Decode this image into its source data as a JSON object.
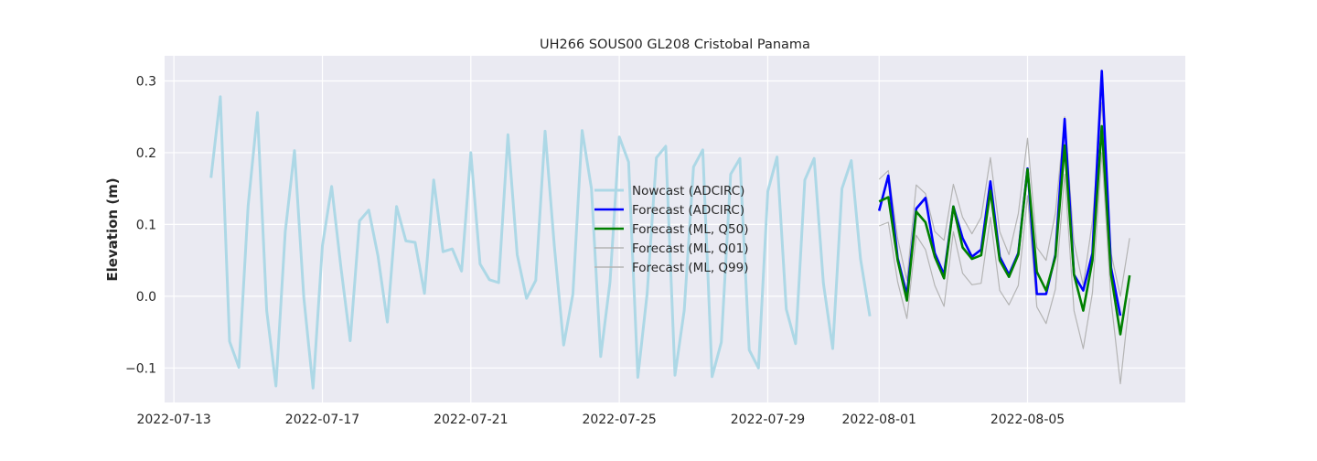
{
  "chart_data": {
    "type": "line",
    "title": "UH266 SOUS00 GL208 Cristobal Panama",
    "xlabel": "",
    "ylabel": "Elevation (m)",
    "xlim": [
      "2022-07-12T18:00",
      "2022-08-09T06:00"
    ],
    "ylim": [
      -0.148,
      0.335
    ],
    "grid": true,
    "legend_position": "center",
    "x_ticks": [
      "2022-07-13",
      "2022-07-17",
      "2022-07-21",
      "2022-07-25",
      "2022-07-29",
      "2022-08-01",
      "2022-08-05"
    ],
    "y_ticks": [
      -0.1,
      0.0,
      0.1,
      0.2,
      0.3
    ],
    "y_tick_labels": [
      "−0.1",
      "0.0",
      "0.1",
      "0.2",
      "0.3"
    ],
    "series": [
      {
        "name": "Nowcast (ADCIRC)",
        "color": "#add8e6",
        "x": [
          "2022-07-14T00:00",
          "2022-07-14T06:00",
          "2022-07-14T12:00",
          "2022-07-14T18:00",
          "2022-07-15T00:00",
          "2022-07-15T06:00",
          "2022-07-15T12:00",
          "2022-07-15T18:00",
          "2022-07-16T00:00",
          "2022-07-16T06:00",
          "2022-07-16T12:00",
          "2022-07-16T18:00",
          "2022-07-17T00:00",
          "2022-07-17T06:00",
          "2022-07-17T12:00",
          "2022-07-17T18:00",
          "2022-07-18T00:00",
          "2022-07-18T06:00",
          "2022-07-18T12:00",
          "2022-07-18T18:00",
          "2022-07-19T00:00",
          "2022-07-19T06:00",
          "2022-07-19T12:00",
          "2022-07-19T18:00",
          "2022-07-20T00:00",
          "2022-07-20T06:00",
          "2022-07-20T12:00",
          "2022-07-20T18:00",
          "2022-07-21T00:00",
          "2022-07-21T06:00",
          "2022-07-21T12:00",
          "2022-07-21T18:00",
          "2022-07-22T00:00",
          "2022-07-22T06:00",
          "2022-07-22T12:00",
          "2022-07-22T18:00",
          "2022-07-23T00:00",
          "2022-07-23T06:00",
          "2022-07-23T12:00",
          "2022-07-23T18:00",
          "2022-07-24T00:00",
          "2022-07-24T06:00",
          "2022-07-24T12:00",
          "2022-07-24T18:00",
          "2022-07-25T00:00",
          "2022-07-25T06:00",
          "2022-07-25T12:00",
          "2022-07-25T18:00",
          "2022-07-26T00:00",
          "2022-07-26T06:00",
          "2022-07-26T12:00",
          "2022-07-26T18:00",
          "2022-07-27T00:00",
          "2022-07-27T06:00",
          "2022-07-27T12:00",
          "2022-07-27T18:00",
          "2022-07-28T00:00",
          "2022-07-28T06:00",
          "2022-07-28T12:00",
          "2022-07-28T18:00",
          "2022-07-29T00:00",
          "2022-07-29T06:00",
          "2022-07-29T12:00",
          "2022-07-29T18:00",
          "2022-07-30T00:00",
          "2022-07-30T06:00",
          "2022-07-30T12:00",
          "2022-07-30T18:00",
          "2022-07-31T00:00",
          "2022-07-31T06:00",
          "2022-07-31T12:00",
          "2022-07-31T18:00"
        ],
        "y": [
          0.165,
          0.278,
          -0.063,
          -0.099,
          0.126,
          0.256,
          -0.02,
          -0.125,
          0.09,
          0.203,
          -0.002,
          -0.128,
          0.07,
          0.153,
          0.04,
          -0.062,
          0.105,
          0.12,
          0.056,
          -0.036,
          0.125,
          0.077,
          0.075,
          0.004,
          0.162,
          0.062,
          0.066,
          0.035,
          0.2,
          0.045,
          0.023,
          0.019,
          0.225,
          0.058,
          -0.003,
          0.022,
          0.23,
          0.07,
          -0.068,
          0.003,
          0.231,
          0.15,
          -0.084,
          0.02,
          0.222,
          0.187,
          -0.113,
          0.004,
          0.193,
          0.209,
          -0.11,
          -0.02,
          0.18,
          0.204,
          -0.112,
          -0.064,
          0.17,
          0.192,
          -0.075,
          -0.1,
          0.146,
          0.194,
          -0.018,
          -0.066,
          0.162,
          0.192,
          0.018,
          -0.073,
          0.15,
          0.189,
          0.052,
          -0.028
        ]
      },
      {
        "name": "Forecast (ADCIRC)",
        "color": "#0000ff",
        "x": [
          "2022-08-01T00:00",
          "2022-08-01T06:00",
          "2022-08-01T12:00",
          "2022-08-01T18:00",
          "2022-08-02T00:00",
          "2022-08-02T06:00",
          "2022-08-02T12:00",
          "2022-08-02T18:00",
          "2022-08-03T00:00",
          "2022-08-03T06:00",
          "2022-08-03T12:00",
          "2022-08-03T18:00",
          "2022-08-04T00:00",
          "2022-08-04T06:00",
          "2022-08-04T12:00",
          "2022-08-04T18:00",
          "2022-08-05T00:00",
          "2022-08-05T06:00",
          "2022-08-05T12:00",
          "2022-08-05T18:00",
          "2022-08-06T00:00",
          "2022-08-06T06:00",
          "2022-08-06T12:00",
          "2022-08-06T18:00",
          "2022-08-07T00:00",
          "2022-08-07T06:00",
          "2022-08-07T12:00",
          "2022-08-07T18:00"
        ],
        "y": [
          0.119,
          0.168,
          0.053,
          0.002,
          0.122,
          0.137,
          0.06,
          0.03,
          0.125,
          0.081,
          0.055,
          0.065,
          0.16,
          0.055,
          0.03,
          0.06,
          0.178,
          0.003,
          0.003,
          0.058,
          0.247,
          0.03,
          0.008,
          0.06,
          0.314,
          0.04,
          -0.027,
          null
        ]
      },
      {
        "name": "Forecast (ML, Q50)",
        "color": "#008000",
        "x": [
          "2022-08-01T00:00",
          "2022-08-01T06:00",
          "2022-08-01T12:00",
          "2022-08-01T18:00",
          "2022-08-02T00:00",
          "2022-08-02T06:00",
          "2022-08-02T12:00",
          "2022-08-02T18:00",
          "2022-08-03T00:00",
          "2022-08-03T06:00",
          "2022-08-03T12:00",
          "2022-08-03T18:00",
          "2022-08-04T00:00",
          "2022-08-04T06:00",
          "2022-08-04T12:00",
          "2022-08-04T18:00",
          "2022-08-05T00:00",
          "2022-08-05T06:00",
          "2022-08-05T12:00",
          "2022-08-05T18:00",
          "2022-08-06T00:00",
          "2022-08-06T06:00",
          "2022-08-06T12:00",
          "2022-08-06T18:00",
          "2022-08-07T00:00",
          "2022-08-07T06:00",
          "2022-08-07T12:00",
          "2022-08-07T18:00"
        ],
        "y": [
          0.132,
          0.138,
          0.05,
          -0.006,
          0.118,
          0.103,
          0.055,
          0.025,
          0.125,
          0.068,
          0.052,
          0.057,
          0.147,
          0.05,
          0.027,
          0.058,
          0.177,
          0.034,
          0.008,
          0.055,
          0.21,
          0.03,
          -0.02,
          0.05,
          0.237,
          0.03,
          -0.053,
          0.029
        ]
      },
      {
        "name": "Forecast (ML, Q01)",
        "color": "#b4b4b4",
        "x": [
          "2022-08-01T00:00",
          "2022-08-01T06:00",
          "2022-08-01T12:00",
          "2022-08-01T18:00",
          "2022-08-02T00:00",
          "2022-08-02T06:00",
          "2022-08-02T12:00",
          "2022-08-02T18:00",
          "2022-08-03T00:00",
          "2022-08-03T06:00",
          "2022-08-03T12:00",
          "2022-08-03T18:00",
          "2022-08-04T00:00",
          "2022-08-04T06:00",
          "2022-08-04T12:00",
          "2022-08-04T18:00",
          "2022-08-05T00:00",
          "2022-08-05T06:00",
          "2022-08-05T12:00",
          "2022-08-05T18:00",
          "2022-08-06T00:00",
          "2022-08-06T06:00",
          "2022-08-06T12:00",
          "2022-08-06T18:00",
          "2022-08-07T00:00",
          "2022-08-07T06:00",
          "2022-08-07T12:00",
          "2022-08-07T18:00"
        ],
        "y": [
          0.098,
          0.103,
          0.02,
          -0.031,
          0.085,
          0.065,
          0.015,
          -0.014,
          0.09,
          0.032,
          0.016,
          0.018,
          0.11,
          0.008,
          -0.012,
          0.015,
          0.14,
          -0.015,
          -0.038,
          0.01,
          0.17,
          -0.02,
          -0.073,
          0.005,
          0.2,
          -0.005,
          -0.122,
          -0.003
        ]
      },
      {
        "name": "Forecast (ML, Q99)",
        "color": "#b4b4b4",
        "x": [
          "2022-08-01T00:00",
          "2022-08-01T06:00",
          "2022-08-01T12:00",
          "2022-08-01T18:00",
          "2022-08-02T00:00",
          "2022-08-02T06:00",
          "2022-08-02T12:00",
          "2022-08-02T18:00",
          "2022-08-03T00:00",
          "2022-08-03T06:00",
          "2022-08-03T12:00",
          "2022-08-03T18:00",
          "2022-08-04T00:00",
          "2022-08-04T06:00",
          "2022-08-04T12:00",
          "2022-08-04T18:00",
          "2022-08-05T00:00",
          "2022-08-05T06:00",
          "2022-08-05T12:00",
          "2022-08-05T18:00",
          "2022-08-06T00:00",
          "2022-08-06T06:00",
          "2022-08-06T12:00",
          "2022-08-06T18:00",
          "2022-08-07T00:00",
          "2022-08-07T06:00",
          "2022-08-07T12:00",
          "2022-08-07T18:00"
        ],
        "y": [
          0.163,
          0.175,
          0.08,
          0.022,
          0.155,
          0.143,
          0.09,
          0.078,
          0.156,
          0.11,
          0.087,
          0.11,
          0.193,
          0.09,
          0.058,
          0.115,
          0.22,
          0.068,
          0.05,
          0.116,
          0.25,
          0.075,
          0.015,
          0.105,
          0.27,
          0.06,
          0.0,
          0.081
        ]
      }
    ]
  }
}
